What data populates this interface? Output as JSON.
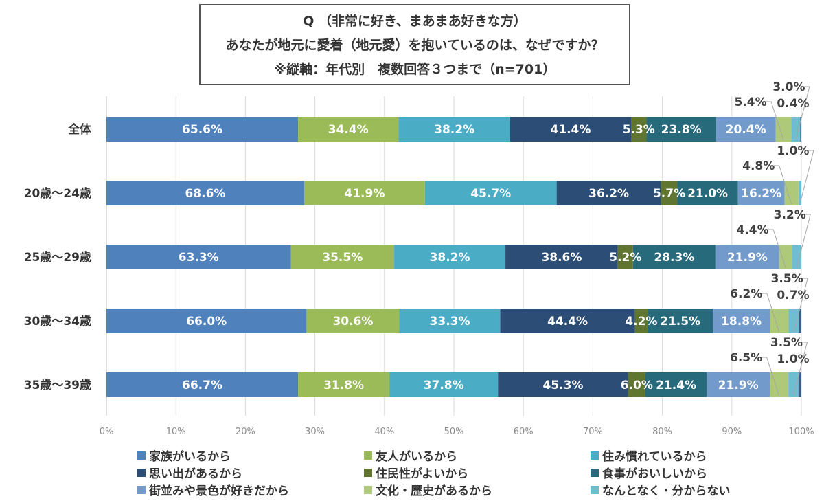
{
  "title": {
    "line1": "Q （非常に好き、まあまあ好きな方）",
    "line2": "あなたが地元に愛着（地元愛）を抱いているのは、なぜですか？",
    "line3": "※縦軸：年代別　複数回答３つまで（n=701）"
  },
  "chart_data": {
    "type": "bar",
    "orientation": "horizontal",
    "stacking": "percent",
    "title": "Q （非常に好き、まあまあ好きな方） あなたが地元に愛着（地元愛）を抱いているのは、なぜですか？ ※縦軸：年代別　複数回答３つまで（n=701）",
    "xlabel": "",
    "ylabel": "",
    "xlim": [
      0,
      100
    ],
    "x_ticks": [
      "0%",
      "10%",
      "20%",
      "30%",
      "40%",
      "50%",
      "60%",
      "70%",
      "80%",
      "90%",
      "100%"
    ],
    "grid": true,
    "legend_position": "bottom",
    "categories": [
      "全体",
      "20歳～24歳",
      "25歳～29歳",
      "30歳～34歳",
      "35歳～39歳"
    ],
    "series": [
      {
        "name": "家族がいるから",
        "color": "#4f81bd",
        "values": [
          65.6,
          68.6,
          63.3,
          66.0,
          66.7
        ]
      },
      {
        "name": "友人がいるから",
        "color": "#9bbb59",
        "values": [
          34.4,
          41.9,
          35.5,
          30.6,
          31.8
        ]
      },
      {
        "name": "住み慣れているから",
        "color": "#4bacc6",
        "values": [
          38.2,
          45.7,
          38.2,
          33.3,
          37.8
        ]
      },
      {
        "name": "思い出があるから",
        "color": "#2c4d75",
        "values": [
          41.4,
          36.2,
          38.6,
          44.4,
          45.3
        ]
      },
      {
        "name": "住民性がよいから",
        "color": "#5f7530",
        "values": [
          5.3,
          5.7,
          5.2,
          4.2,
          6.0
        ]
      },
      {
        "name": "食事がおいしいから",
        "color": "#276a7c",
        "values": [
          23.8,
          21.0,
          28.3,
          21.5,
          21.4
        ]
      },
      {
        "name": "街並みや景色が好きだから",
        "color": "#729aca",
        "values": [
          20.4,
          16.2,
          21.9,
          18.8,
          21.9
        ]
      },
      {
        "name": "文化・歴史があるから",
        "color": "#afc97a",
        "values": [
          5.4,
          4.8,
          4.4,
          6.2,
          6.5
        ]
      },
      {
        "name": "なんとなく・分からない",
        "color": "#6fbdd1",
        "values": [
          3.0,
          1.0,
          3.2,
          3.5,
          3.5
        ]
      },
      {
        "name": "",
        "color": "#3a5f8f",
        "values": [
          0.4,
          0,
          0,
          0.7,
          1.0
        ]
      }
    ]
  }
}
